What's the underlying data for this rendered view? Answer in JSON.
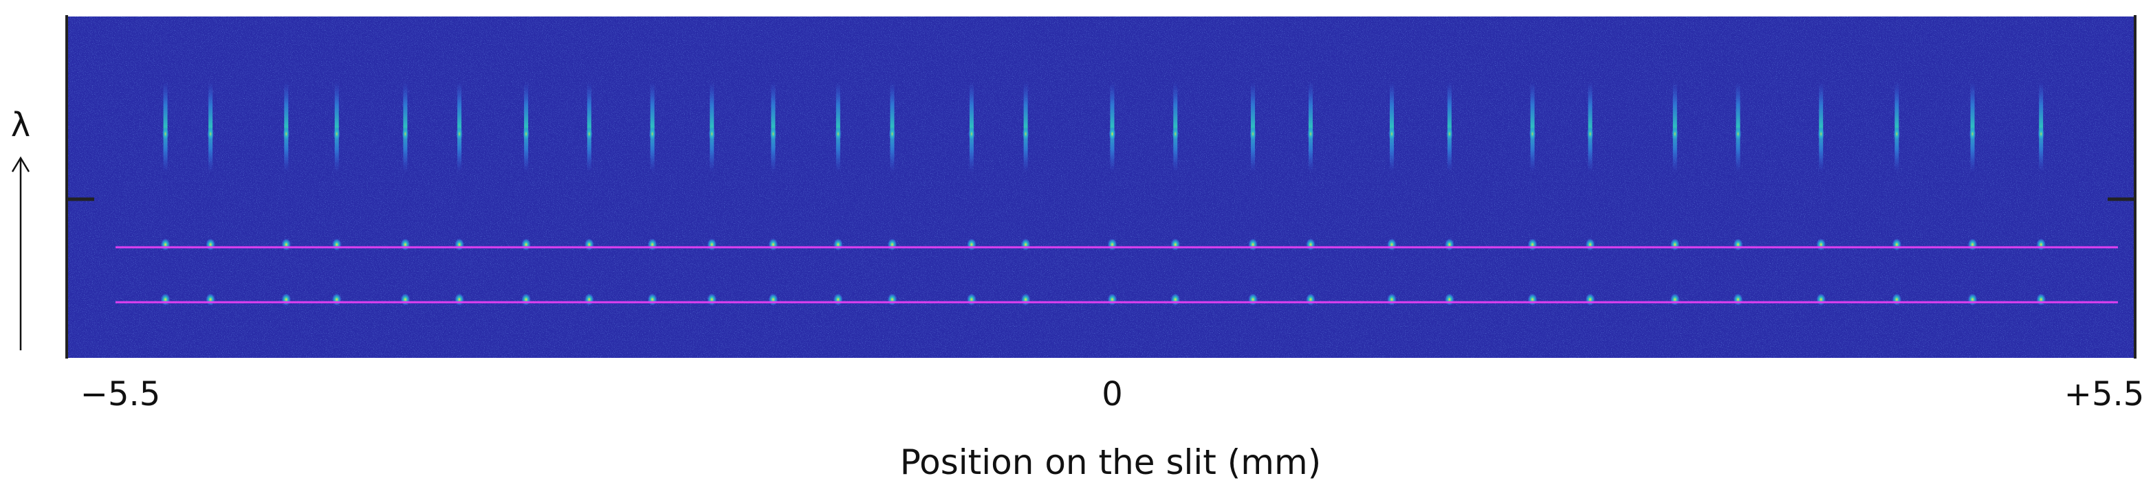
{
  "chart_data": {
    "type": "heatmap",
    "title": "",
    "xlabel": "Position on the slit (mm)",
    "ylabel": "λ",
    "xlim": [
      -5.5,
      5.5
    ],
    "x_ticks": [
      {
        "value": -5.5,
        "label": "−5.5"
      },
      {
        "value": 0,
        "label": "0"
      },
      {
        "value": 5.5,
        "label": "+5.5"
      }
    ],
    "colormap": [
      "#2b2fa8",
      "#3548d6",
      "#2f8fe0",
      "#2ec7c1",
      "#b7e04a",
      "#f5e33a"
    ],
    "background_color": "#2a2da8",
    "line_color": "#e040f0",
    "spot_x": [
      -5.25,
      -5.0,
      -4.58,
      -4.3,
      -3.92,
      -3.62,
      -3.25,
      -2.9,
      -2.55,
      -2.22,
      -1.88,
      -1.52,
      -1.22,
      -0.78,
      -0.48,
      0.0,
      0.35,
      0.78,
      1.1,
      1.55,
      1.87,
      2.33,
      2.65,
      3.12,
      3.47,
      3.93,
      4.35,
      4.77,
      5.15
    ],
    "rows": [
      "upper band",
      "marker line 1",
      "marker line 2"
    ]
  }
}
